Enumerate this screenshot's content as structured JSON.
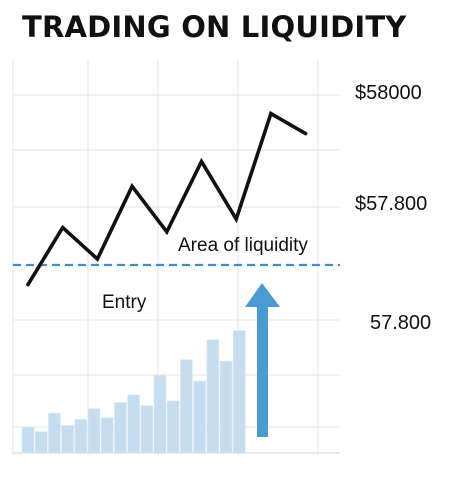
{
  "title": "TRADING ON LIQUIDITY",
  "chart_data": {
    "type": "line",
    "title": "TRADING ON LIQUIDITY",
    "xlabel": "",
    "ylabel": "",
    "y_tick_labels": [
      "$58000",
      "$57.800",
      "57.800"
    ],
    "price_line": {
      "points": [
        {
          "x": 0,
          "y": 57.51
        },
        {
          "x": 1,
          "y": 57.71
        },
        {
          "x": 2,
          "y": 57.6
        },
        {
          "x": 3,
          "y": 57.855
        },
        {
          "x": 4,
          "y": 57.695
        },
        {
          "x": 5,
          "y": 57.942
        },
        {
          "x": 6,
          "y": 57.74
        },
        {
          "x": 7,
          "y": 58.11
        },
        {
          "x": 8,
          "y": 58.04
        }
      ]
    },
    "volume_bars": {
      "values": [
        1.7,
        1.4,
        2.6,
        1.8,
        2.2,
        2.9,
        2.3,
        3.3,
        3.8,
        3.1,
        5.1,
        3.4,
        6.1,
        4.7,
        7.4,
        6.0,
        8.0
      ]
    },
    "liquidity_line_label": "Area of liquidity",
    "entry_label": "Entry",
    "colors": {
      "price_line": "#111111",
      "volume_bar": "#c6ddf0",
      "liquidity_line": "#3d8fd1",
      "arrow": "#4a9bd4",
      "grid": "#e6e6e6"
    },
    "grid": true
  }
}
